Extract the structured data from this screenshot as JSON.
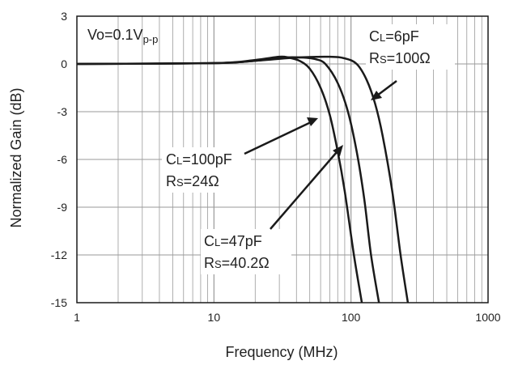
{
  "chart_data": {
    "type": "line",
    "xlabel": "Frequency (MHz)",
    "ylabel": "Normalized Gain (dB)",
    "x_scale": "log",
    "xlim": [
      1,
      1000
    ],
    "ylim": [
      -15,
      3
    ],
    "x_ticks": [
      "1",
      "10",
      "100",
      "1000"
    ],
    "y_ticks": [
      "3",
      "0",
      "-3",
      "-6",
      "-9",
      "-12",
      "-15"
    ],
    "grid": true,
    "condition": {
      "main": "Vo=0.1V",
      "sub": "p-p"
    },
    "series": [
      {
        "name": "CL=6pF RS=100Ω",
        "points": [
          [
            1,
            0
          ],
          [
            10,
            0.05
          ],
          [
            20,
            0.2
          ],
          [
            40,
            0.4
          ],
          [
            70,
            0.45
          ],
          [
            90,
            0.35
          ],
          [
            110,
            0
          ],
          [
            130,
            -1
          ],
          [
            150,
            -2.5
          ],
          [
            170,
            -4.5
          ],
          [
            200,
            -8
          ],
          [
            230,
            -12
          ],
          [
            260,
            -15
          ]
        ]
      },
      {
        "name": "CL=47pF RS=40.2Ω",
        "points": [
          [
            1,
            0
          ],
          [
            10,
            0.05
          ],
          [
            20,
            0.2
          ],
          [
            32,
            0.4
          ],
          [
            45,
            0.4
          ],
          [
            55,
            0.3
          ],
          [
            65,
            0
          ],
          [
            80,
            -1.2
          ],
          [
            95,
            -3
          ],
          [
            110,
            -5.5
          ],
          [
            125,
            -8.5
          ],
          [
            140,
            -12
          ],
          [
            160,
            -15
          ]
        ]
      },
      {
        "name": "CL=100pF RS=24Ω",
        "points": [
          [
            1,
            0
          ],
          [
            10,
            0.05
          ],
          [
            20,
            0.25
          ],
          [
            30,
            0.45
          ],
          [
            35,
            0.4
          ],
          [
            42,
            0.2
          ],
          [
            50,
            -0.3
          ],
          [
            60,
            -1.5
          ],
          [
            70,
            -3.2
          ],
          [
            80,
            -5.5
          ],
          [
            90,
            -8
          ],
          [
            105,
            -12
          ],
          [
            120,
            -15
          ]
        ]
      }
    ],
    "annotations": [
      {
        "l1_main": "C",
        "l1_sub": "L",
        "l1_rest": "=6pF",
        "l2_main": "R",
        "l2_sub": "S",
        "l2_rest": "=100Ω"
      },
      {
        "l1_main": "C",
        "l1_sub": "L",
        "l1_rest": "=100pF",
        "l2_main": "R",
        "l2_sub": "S",
        "l2_rest": "=24Ω"
      },
      {
        "l1_main": "C",
        "l1_sub": "L",
        "l1_rest": "=47pF",
        "l2_main": "R",
        "l2_sub": "S",
        "l2_rest": "=40.2Ω"
      }
    ],
    "colors": {
      "line": "#1a1a1a",
      "grid": "#9a9a9a",
      "background": "#ffffff"
    }
  }
}
